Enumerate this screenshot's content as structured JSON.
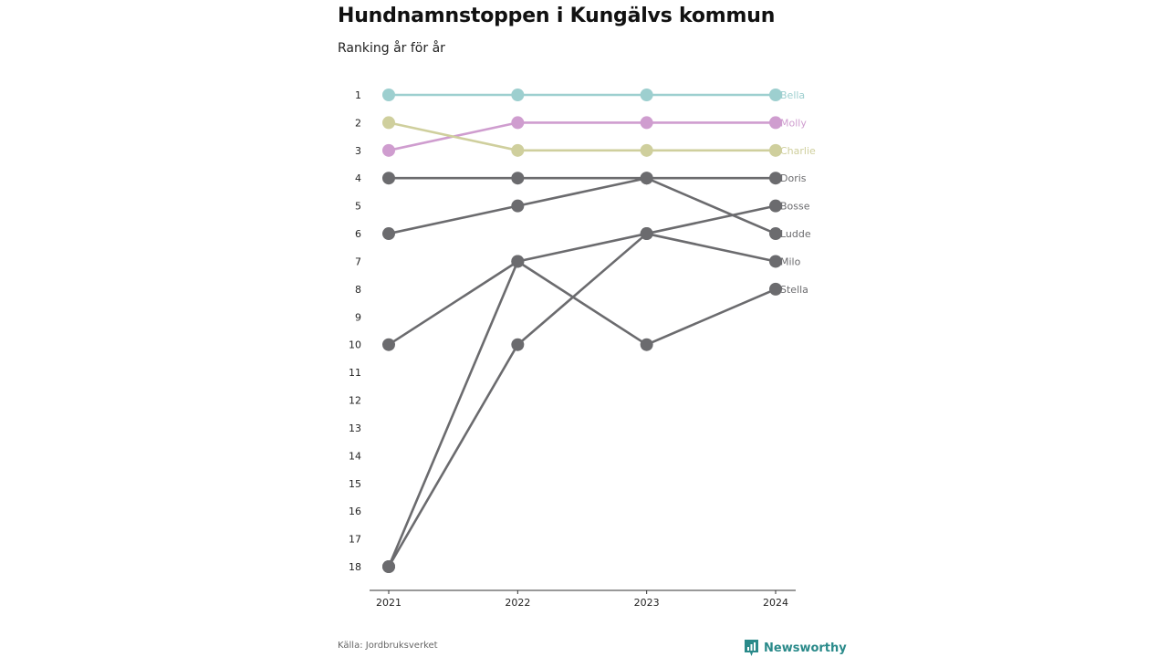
{
  "title": "Hundnamnstoppen i Kungälvs kommun",
  "subtitle": "Ranking år för år",
  "source": "Källa: Jordbruksverket",
  "brand": "Newsworthy",
  "chart_data": {
    "type": "line",
    "x": [
      "2021",
      "2022",
      "2023",
      "2024"
    ],
    "y_ticks": [
      1,
      2,
      3,
      4,
      5,
      6,
      7,
      8,
      9,
      10,
      11,
      12,
      13,
      14,
      15,
      16,
      17,
      18
    ],
    "ylim": [
      1,
      18
    ],
    "y_inverted": true,
    "series": [
      {
        "name": "Bella",
        "values": [
          1,
          1,
          1,
          1
        ],
        "color": "#9dcfcf"
      },
      {
        "name": "Molly",
        "values": [
          3,
          2,
          2,
          2
        ],
        "color": "#cf9dcf"
      },
      {
        "name": "Charlie",
        "values": [
          2,
          3,
          3,
          3
        ],
        "color": "#cfcf9d"
      },
      {
        "name": "Doris",
        "values": [
          4,
          4,
          4,
          4
        ],
        "color": "#6b6b6e"
      },
      {
        "name": "Bosse",
        "values": [
          18,
          10,
          6,
          5
        ],
        "color": "#6b6b6e"
      },
      {
        "name": "Ludde",
        "values": [
          6,
          5,
          4,
          6
        ],
        "color": "#6b6b6e"
      },
      {
        "name": "Milo",
        "values": [
          10,
          7,
          6,
          7
        ],
        "color": "#6b6b6e"
      },
      {
        "name": "Stella",
        "values": [
          18,
          7,
          10,
          8
        ],
        "color": "#6b6b6e"
      }
    ]
  }
}
